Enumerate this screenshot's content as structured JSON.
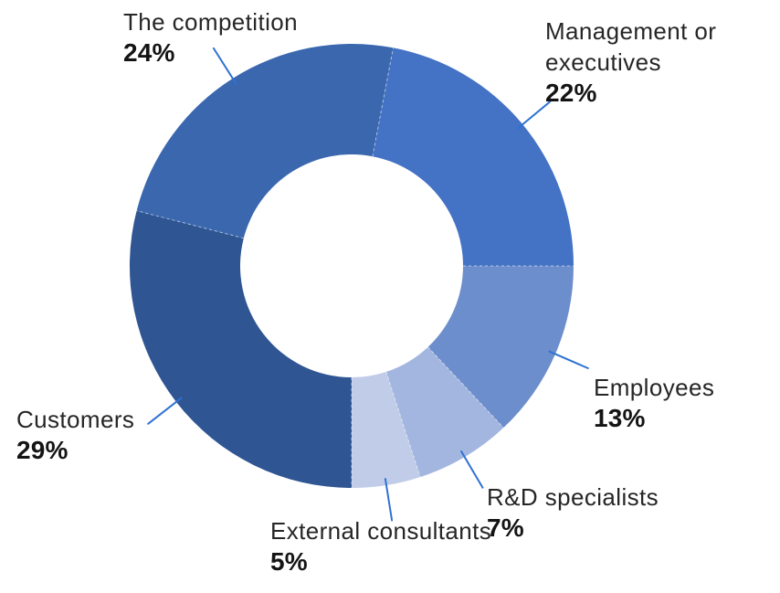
{
  "chart_data": {
    "type": "pie",
    "subtype": "donut",
    "title": "",
    "unit": "%",
    "start_angle_deg": 10.8,
    "direction": "clockwise",
    "legend_position": "callout-labels",
    "background": "#FFFFFF",
    "leader_line_color": "#2E72D2",
    "separator_color": "#FFFFFF",
    "label_color": "#262626",
    "value_color": "#141414",
    "segments": [
      {
        "id": "management",
        "label": "Management or executives",
        "label_lines": [
          "Management or",
          "executives"
        ],
        "value": 22,
        "pct_label": "22%",
        "color": "#4472C4"
      },
      {
        "id": "employees",
        "label": "Employees",
        "label_lines": [
          "Employees"
        ],
        "value": 13,
        "pct_label": "13%",
        "color": "#6D8ECC"
      },
      {
        "id": "rd-specialists",
        "label": "R&D specialists",
        "label_lines": [
          "R&D specialists"
        ],
        "value": 7,
        "pct_label": "7%",
        "color": "#A3B6DF"
      },
      {
        "id": "external-consultants",
        "label": "External consultants",
        "label_lines": [
          "External consultants"
        ],
        "value": 5,
        "pct_label": "5%",
        "color": "#C0CCE8"
      },
      {
        "id": "customers",
        "label": "Customers",
        "label_lines": [
          "Customers"
        ],
        "value": 29,
        "pct_label": "29%",
        "color": "#2F5593"
      },
      {
        "id": "competition",
        "label": "The competition",
        "label_lines": [
          "The competition"
        ],
        "value": 24,
        "pct_label": "24%",
        "color": "#3A67AE"
      }
    ]
  }
}
